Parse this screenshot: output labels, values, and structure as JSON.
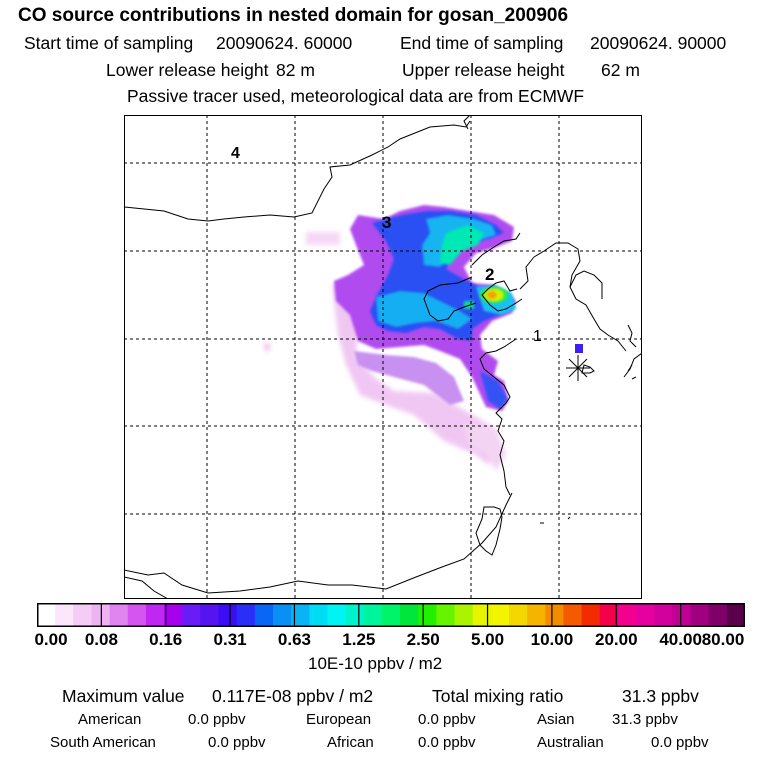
{
  "header": {
    "title": "CO  source contributions in nested domain for gosan_200906",
    "start_label": "Start time of sampling",
    "start_value": "20090624. 60000",
    "end_label": "End time of sampling",
    "end_value": "20090624. 90000",
    "lower_label": "Lower release height",
    "lower_value": "82 m",
    "upper_label": "Upper release height",
    "upper_value": "62 m",
    "note": "Passive tracer used, meteorological data are from ECMWF"
  },
  "map": {
    "region_labels": [
      "1",
      "2",
      "3",
      "4"
    ],
    "receptor_marker": "Gosan receptor (star)"
  },
  "colorbar": {
    "colors": [
      "#ffffff",
      "#fbe6fb",
      "#f5ccf5",
      "#efb3f3",
      "#e084ef",
      "#d455f0",
      "#c028f2",
      "#a600ef",
      "#6a1cf7",
      "#5514f0",
      "#3c0cf5",
      "#2a2ff8",
      "#0a66f4",
      "#0a8ff4",
      "#0ab4f4",
      "#00dcf4",
      "#00f4f4",
      "#00f4cc",
      "#00f49c",
      "#00f46a",
      "#00e63c",
      "#22f000",
      "#66f400",
      "#aaf400",
      "#e6f400",
      "#f4f400",
      "#f4d600",
      "#f4b400",
      "#f48c00",
      "#f45a00",
      "#f42a00",
      "#f4004c",
      "#f40090",
      "#e600a0",
      "#d2009c",
      "#c00094",
      "#a00080",
      "#80006a",
      "#5a004a"
    ],
    "ticks": [
      "0.00",
      "0.08",
      "0.16",
      "0.31",
      "0.63",
      "1.25",
      "2.50",
      "5.00",
      "10.00",
      "20.00",
      "40.00",
      "80.00"
    ],
    "unit": "10E-10 ppbv / m2"
  },
  "summary": {
    "max_label": "Maximum value",
    "max_value": "0.117E-08 ppbv / m2",
    "total_label": "Total mixing ratio",
    "total_value": "31.3 ppbv",
    "regions": [
      {
        "name": "American",
        "value": "0.0 ppbv"
      },
      {
        "name": "European",
        "value": "0.0 ppbv"
      },
      {
        "name": "Asian",
        "value": "31.3 ppbv"
      },
      {
        "name": "South American",
        "value": "0.0 ppbv"
      },
      {
        "name": "African",
        "value": "0.0 ppbv"
      },
      {
        "name": "Australian",
        "value": "0.0 ppbv"
      }
    ]
  }
}
